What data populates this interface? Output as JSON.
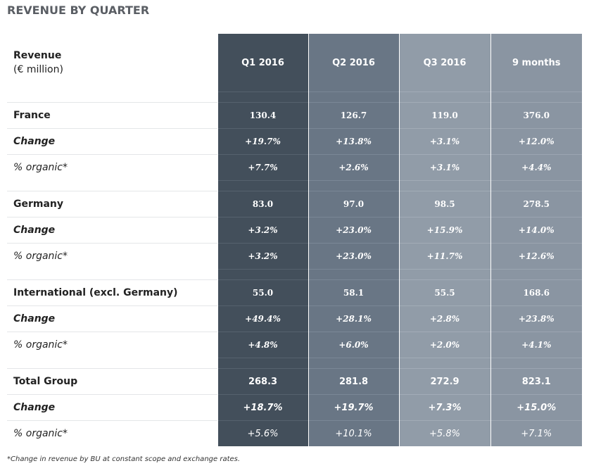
{
  "title": "REVENUE BY QUARTER",
  "table": {
    "header": {
      "label_line1": "Revenue",
      "label_line2": "(€ million)",
      "columns": [
        "Q1 2016",
        "Q2 2016",
        "Q3 2016",
        "9 months"
      ]
    },
    "france": {
      "label": "France",
      "values": [
        "130.4",
        "126.7",
        "119.0",
        "376.0"
      ],
      "change_label": "Change",
      "change": [
        "+19.7%",
        "+13.8%",
        "+3.1%",
        "+12.0%"
      ],
      "organic_label": "% organic*",
      "organic": [
        "+7.7%",
        "+2.6%",
        "+3.1%",
        "+4.4%"
      ]
    },
    "germany": {
      "label": "Germany",
      "values": [
        "83.0",
        "97.0",
        "98.5",
        "278.5"
      ],
      "change_label": "Change",
      "change": [
        "+3.2%",
        "+23.0%",
        "+15.9%",
        "+14.0%"
      ],
      "organic_label": "% organic*",
      "organic": [
        "+3.2%",
        "+23.0%",
        "+11.7%",
        "+12.6%"
      ]
    },
    "international": {
      "label": "International (excl. Germany)",
      "values": [
        "55.0",
        "58.1",
        "55.5",
        "168.6"
      ],
      "change_label": "Change",
      "change": [
        "+49.4%",
        "+28.1%",
        "+2.8%",
        "+23.8%"
      ],
      "organic_label": "% organic*",
      "organic": [
        "+4.8%",
        "+6.0%",
        "+2.0%",
        "+4.1%"
      ]
    },
    "total": {
      "label": "Total Group",
      "values": [
        "268.3",
        "281.8",
        "272.9",
        "823.1"
      ],
      "change_label": "Change",
      "change": [
        "+18.7%",
        "+19.7%",
        "+7.3%",
        "+15.0%"
      ],
      "organic_label": "% organic*",
      "organic": [
        "+5.6%",
        "+10.1%",
        "+5.8%",
        "+7.1%"
      ]
    }
  },
  "footnote": "*Change in revenue by BU at constant scope and exchange rates."
}
